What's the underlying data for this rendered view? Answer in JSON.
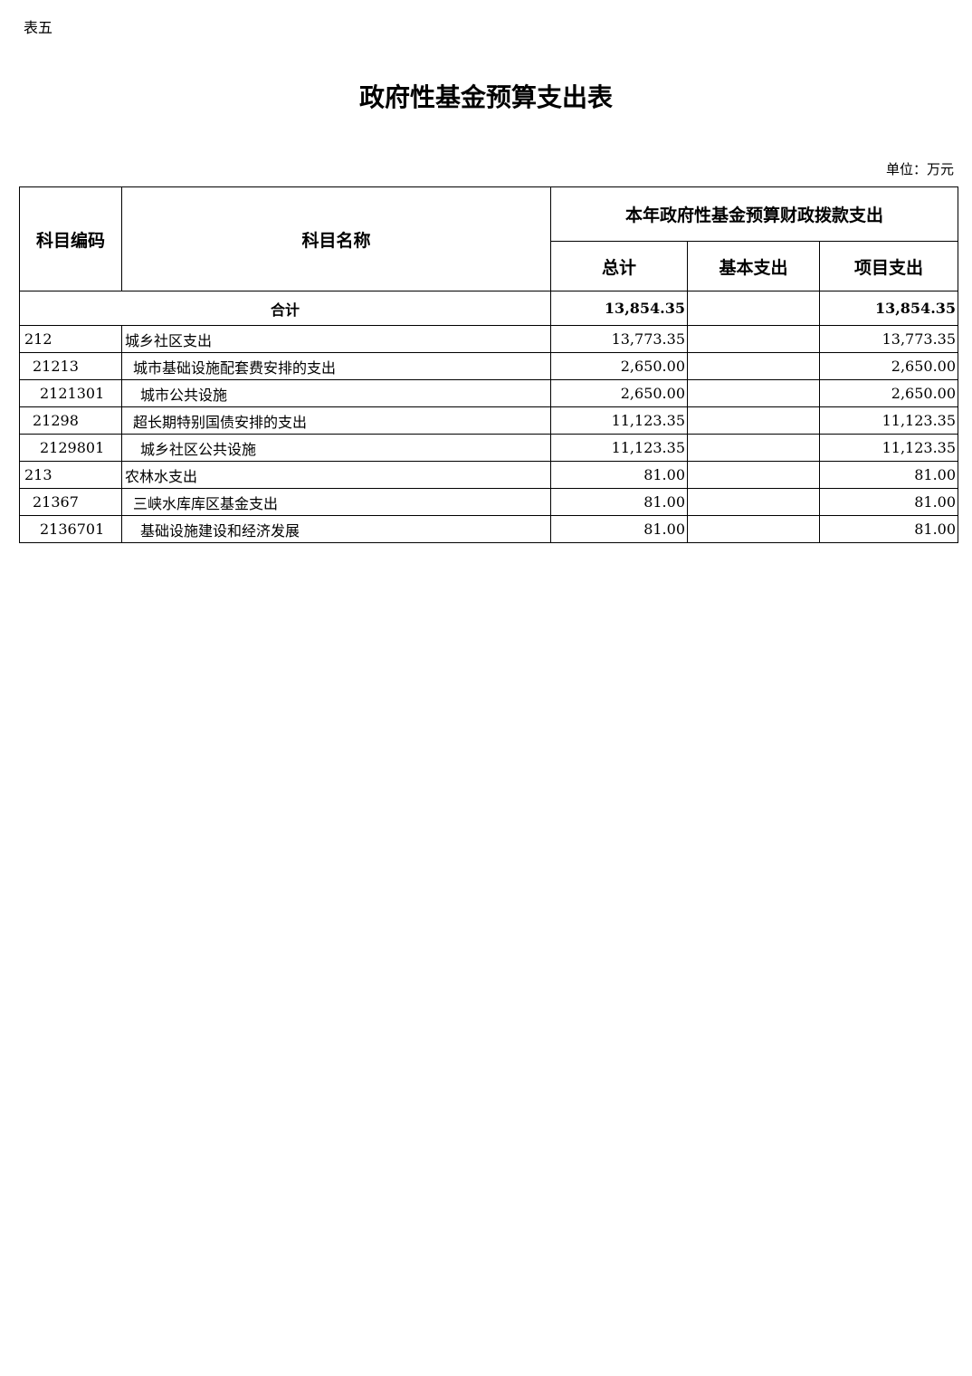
{
  "table_label": "表五",
  "title": "政府性基金预算支出表",
  "unit": "单位：万元",
  "headers": {
    "code": "科目编码",
    "name": "科目名称",
    "group": "本年政府性基金预算财政拨款支出",
    "total": "总计",
    "basic": "基本支出",
    "project": "项目支出"
  },
  "total_row": {
    "label": "合计",
    "total": "13,854.35",
    "basic": "",
    "project": "13,854.35"
  },
  "rows": [
    {
      "code": "212",
      "name": "城乡社区支出",
      "total": "13,773.35",
      "basic": "",
      "project": "13,773.35"
    },
    {
      "code": "21213",
      "name": "城市基础设施配套费安排的支出",
      "total": "2,650.00",
      "basic": "",
      "project": "2,650.00"
    },
    {
      "code": "2121301",
      "name": "城市公共设施",
      "total": "2,650.00",
      "basic": "",
      "project": "2,650.00"
    },
    {
      "code": "21298",
      "name": "超长期特别国债安排的支出",
      "total": "11,123.35",
      "basic": "",
      "project": "11,123.35"
    },
    {
      "code": "2129801",
      "name": "城乡社区公共设施",
      "total": "11,123.35",
      "basic": "",
      "project": "11,123.35"
    },
    {
      "code": "213",
      "name": "农林水支出",
      "total": "81.00",
      "basic": "",
      "project": "81.00"
    },
    {
      "code": "21367",
      "name": "三峡水库库区基金支出",
      "total": "81.00",
      "basic": "",
      "project": "81.00"
    },
    {
      "code": "2136701",
      "name": "基础设施建设和经济发展",
      "total": "81.00",
      "basic": "",
      "project": "81.00"
    }
  ]
}
